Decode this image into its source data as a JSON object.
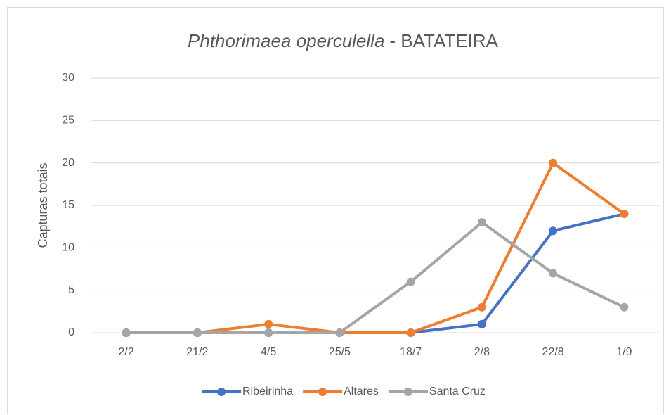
{
  "chart_data": {
    "type": "line",
    "title": [
      "Phthorimaea operculella",
      "- BATATEIRA"
    ],
    "y_label": "Capturas totais",
    "categories": [
      "2/2",
      "21/2",
      "4/5",
      "25/5",
      "18/7",
      "2/8",
      "22/8",
      "1/9"
    ],
    "series": [
      {
        "name": "Ribeirinha",
        "color": "#4472c4",
        "values": [
          0,
          0,
          0,
          0,
          0,
          1,
          12,
          14
        ]
      },
      {
        "name": "Altares",
        "color": "#ed7d31",
        "values": [
          0,
          0,
          1,
          0,
          0,
          3,
          20,
          14
        ]
      },
      {
        "name": "Santa Cruz",
        "color": "#a5a5a5",
        "values": [
          0,
          0,
          0,
          0,
          6,
          13,
          7,
          3
        ]
      }
    ],
    "ylim": [
      0,
      30
    ],
    "yticks": [
      0,
      5,
      10,
      15,
      20,
      25,
      30
    ],
    "grid": true,
    "legend": "bottom"
  }
}
